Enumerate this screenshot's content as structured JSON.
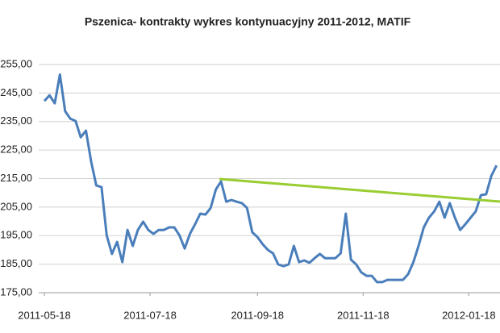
{
  "chart_data": {
    "type": "line",
    "title": "Pszenica- kontrakty wykres kontynuacyjny 2011-2012,  MATIF",
    "x": [
      "2011-05-18",
      "2011-05-21",
      "2011-05-24",
      "2011-05-27",
      "2011-05-30",
      "2011-06-02",
      "2011-06-05",
      "2011-06-08",
      "2011-06-11",
      "2011-06-14",
      "2011-06-17",
      "2011-06-20",
      "2011-06-23",
      "2011-06-26",
      "2011-06-29",
      "2011-07-02",
      "2011-07-05",
      "2011-07-08",
      "2011-07-11",
      "2011-07-14",
      "2011-07-17",
      "2011-07-20",
      "2011-07-23",
      "2011-07-26",
      "2011-07-29",
      "2011-08-01",
      "2011-08-04",
      "2011-08-07",
      "2011-08-10",
      "2011-08-13",
      "2011-08-16",
      "2011-08-19",
      "2011-08-22",
      "2011-08-25",
      "2011-08-28",
      "2011-08-31",
      "2011-09-03",
      "2011-09-06",
      "2011-09-09",
      "2011-09-12",
      "2011-09-15",
      "2011-09-18",
      "2011-09-21",
      "2011-09-24",
      "2011-09-27",
      "2011-09-30",
      "2011-10-03",
      "2011-10-06",
      "2011-10-09",
      "2011-10-12",
      "2011-10-15",
      "2011-10-18",
      "2011-10-21",
      "2011-10-24",
      "2011-10-27",
      "2011-10-30",
      "2011-11-02",
      "2011-11-05",
      "2011-11-08",
      "2011-11-11",
      "2011-11-14",
      "2011-11-17",
      "2011-11-20",
      "2011-11-23",
      "2011-11-26",
      "2011-11-29",
      "2011-12-02",
      "2011-12-05",
      "2011-12-08",
      "2011-12-11",
      "2011-12-14",
      "2011-12-17",
      "2011-12-20",
      "2011-12-23",
      "2011-12-26",
      "2011-12-29",
      "2012-01-01",
      "2012-01-04",
      "2012-01-07",
      "2012-01-10",
      "2012-01-13",
      "2012-01-16",
      "2012-01-19",
      "2012-01-22",
      "2012-01-25",
      "2012-01-28",
      "2012-01-31",
      "2012-02-03"
    ],
    "series": [
      {
        "color": "#4a7ebb",
        "values": [
          242.2,
          244.2,
          241.4,
          251.5,
          238.6,
          236.0,
          235.2,
          229.5,
          231.8,
          221.0,
          212.6,
          212.0,
          195.1,
          188.6,
          192.8,
          185.7,
          197.0,
          191.4,
          197.0,
          199.9,
          197.0,
          195.6,
          197.0,
          197.0,
          197.9,
          197.9,
          195.1,
          190.5,
          195.6,
          199.0,
          202.7,
          202.4,
          204.7,
          211.2,
          214.0,
          206.9,
          207.5,
          206.9,
          206.4,
          204.7,
          196.2,
          194.5,
          192.0,
          190.0,
          188.8,
          184.9,
          184.3,
          184.9,
          191.4,
          185.7,
          186.3,
          185.5,
          187.1,
          188.6,
          187.1,
          187.1,
          187.1,
          188.8,
          202.7,
          186.6,
          184.9,
          182.1,
          180.9,
          180.9,
          178.7,
          178.7,
          179.5,
          179.5,
          179.5,
          179.5,
          181.5,
          185.7,
          191.4,
          197.9,
          201.3,
          203.5,
          206.9,
          201.3,
          206.4,
          201.3,
          197.0,
          199.0,
          201.3,
          203.5,
          209.2,
          209.5,
          216.0,
          219.6
        ]
      }
    ],
    "xlim": [
      "2011-05-18",
      "2012-02-05"
    ],
    "xticks": [
      "2011-05-18",
      "2011-07-18",
      "2011-09-18",
      "2011-11-18",
      "2012-01-18"
    ],
    "ylim": [
      175,
      255
    ],
    "yticks": [
      {
        "value": 175,
        "label": "175,00"
      },
      {
        "value": 185,
        "label": "185,00"
      },
      {
        "value": 195,
        "label": "195,00"
      },
      {
        "value": 205,
        "label": "205,00"
      },
      {
        "value": 215,
        "label": "215,00"
      },
      {
        "value": 225,
        "label": "225,00"
      },
      {
        "value": 235,
        "label": "235,00"
      },
      {
        "value": 245,
        "label": "245,00"
      },
      {
        "value": 255,
        "label": "255,00"
      }
    ],
    "grid": true
  }
}
